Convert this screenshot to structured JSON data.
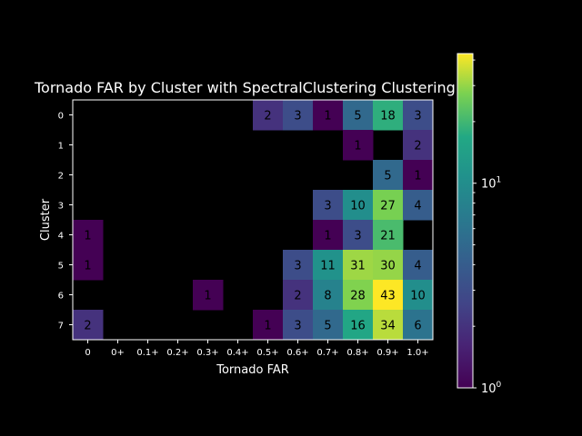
{
  "chart_data": {
    "type": "heatmap",
    "title": "Tornado FAR by Cluster with SpectralClustering Clustering",
    "xlabel": "Tornado FAR",
    "ylabel": "Cluster",
    "x_tick_labels": [
      "0",
      "0+",
      "0.1+",
      "0.2+",
      "0.3+",
      "0.4+",
      "0.5+",
      "0.6+",
      "0.7+",
      "0.8+",
      "0.9+",
      "1.0+"
    ],
    "y_tick_labels": [
      "0",
      "1",
      "2",
      "3",
      "4",
      "5",
      "6",
      "7"
    ],
    "values": [
      [
        null,
        null,
        null,
        null,
        null,
        null,
        2,
        3,
        1,
        5,
        18,
        3
      ],
      [
        null,
        null,
        null,
        null,
        null,
        null,
        null,
        null,
        null,
        1,
        null,
        2
      ],
      [
        null,
        null,
        null,
        null,
        null,
        null,
        null,
        null,
        null,
        null,
        5,
        1
      ],
      [
        null,
        null,
        null,
        null,
        null,
        null,
        null,
        null,
        3,
        10,
        27,
        4
      ],
      [
        1,
        null,
        null,
        null,
        null,
        null,
        null,
        null,
        1,
        3,
        21,
        null
      ],
      [
        1,
        null,
        null,
        null,
        null,
        null,
        null,
        3,
        11,
        31,
        30,
        4
      ],
      [
        null,
        null,
        null,
        null,
        1,
        null,
        null,
        2,
        8,
        28,
        43,
        10
      ],
      [
        2,
        null,
        null,
        null,
        null,
        null,
        1,
        3,
        5,
        16,
        34,
        6
      ]
    ],
    "colorbar": {
      "scale": "log",
      "range": [
        1,
        43
      ],
      "colormap": "viridis",
      "tick_labels": [
        "10^0",
        "10^1"
      ],
      "tick_values": [
        1,
        10
      ]
    }
  }
}
